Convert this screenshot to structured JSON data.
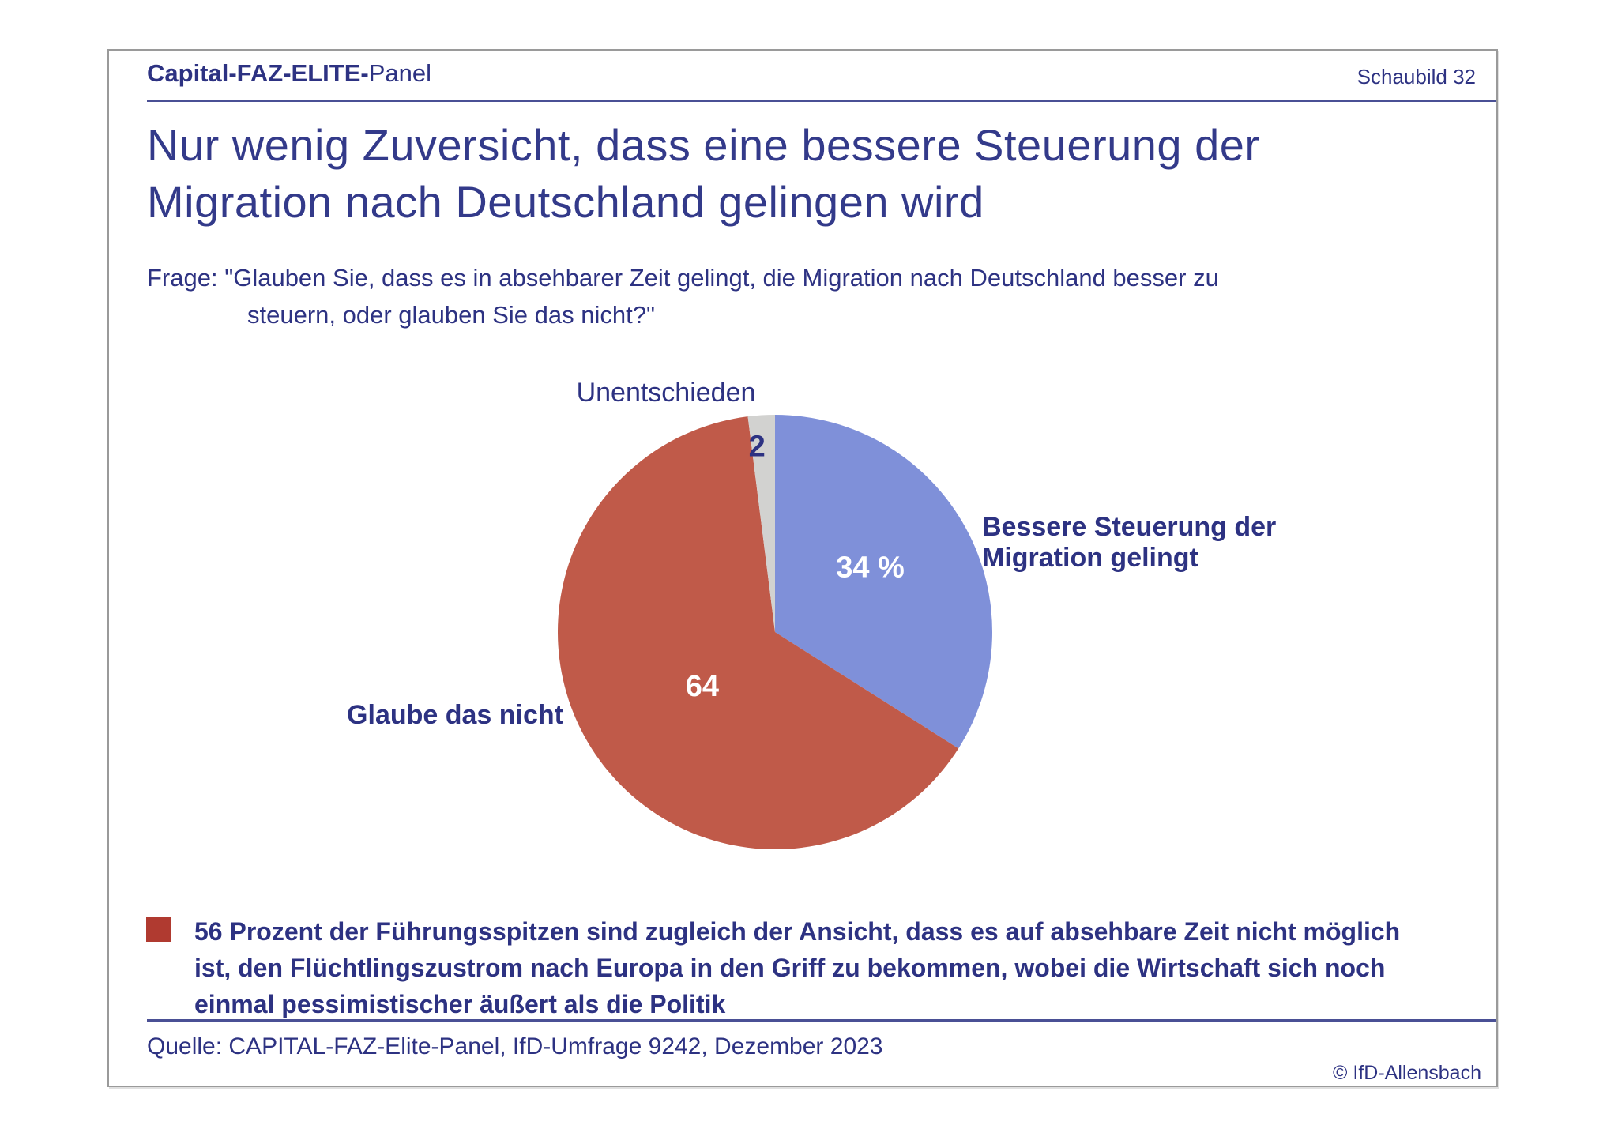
{
  "header": {
    "brand_bold": "Capital-FAZ-ELITE-",
    "brand_regular": "Panel",
    "figure_number": "Schaubild 32"
  },
  "title": {
    "line1": "Nur wenig Zuversicht, dass eine bessere Steuerung der",
    "line2": "Migration nach Deutschland gelingen wird"
  },
  "question": {
    "line1": "Frage: \"Glauben Sie, dass es in absehbarer Zeit gelingt, die Migration nach Deutschland besser zu",
    "line2": "steuern, oder glauben Sie das nicht?\""
  },
  "chart_data": {
    "type": "pie",
    "unit": "percent",
    "start_angle_deg": 0,
    "direction": "clockwise",
    "slices": [
      {
        "label": "Bessere Steuerung der Migration gelingt",
        "label_lines": [
          "Bessere Steuerung der",
          "Migration gelingt"
        ],
        "value": 34,
        "display_value": "34 %",
        "color": "#7f90d9",
        "value_color": "#ffffff",
        "value_radius": 0.55,
        "value_dx": -12,
        "value_dy": -10
      },
      {
        "label": "Glaube das nicht",
        "label_lines": [
          "Glaube das nicht"
        ],
        "value": 64,
        "display_value": "64",
        "color": "#c05a49",
        "value_color": "#ffffff",
        "value_radius": 0.5,
        "value_dx": 24,
        "value_dy": -6
      },
      {
        "label": "Unentschieden",
        "label_lines": [
          "Unentschieden"
        ],
        "value": 2,
        "display_value": "2",
        "color": "#d2d2d0",
        "value_color": "#2d3282",
        "value_radius": 0.8,
        "value_dx": -9,
        "value_dy": -16
      }
    ]
  },
  "note": {
    "bullet_color": "#b03a30",
    "lines": [
      "56 Prozent der Führungsspitzen sind zugleich der Ansicht, dass es auf absehbare Zeit nicht möglich",
      "ist, den Flüchtlingszustrom nach Europa in den Griff zu bekommen, wobei die Wirtschaft sich noch",
      "einmal pessimistischer äußert als die Politik"
    ]
  },
  "footer": {
    "source": "Quelle: CAPITAL-FAZ-Elite-Panel, IfD-Umfrage 9242, Dezember 2023",
    "copyright": "© IfD-Allensbach"
  }
}
